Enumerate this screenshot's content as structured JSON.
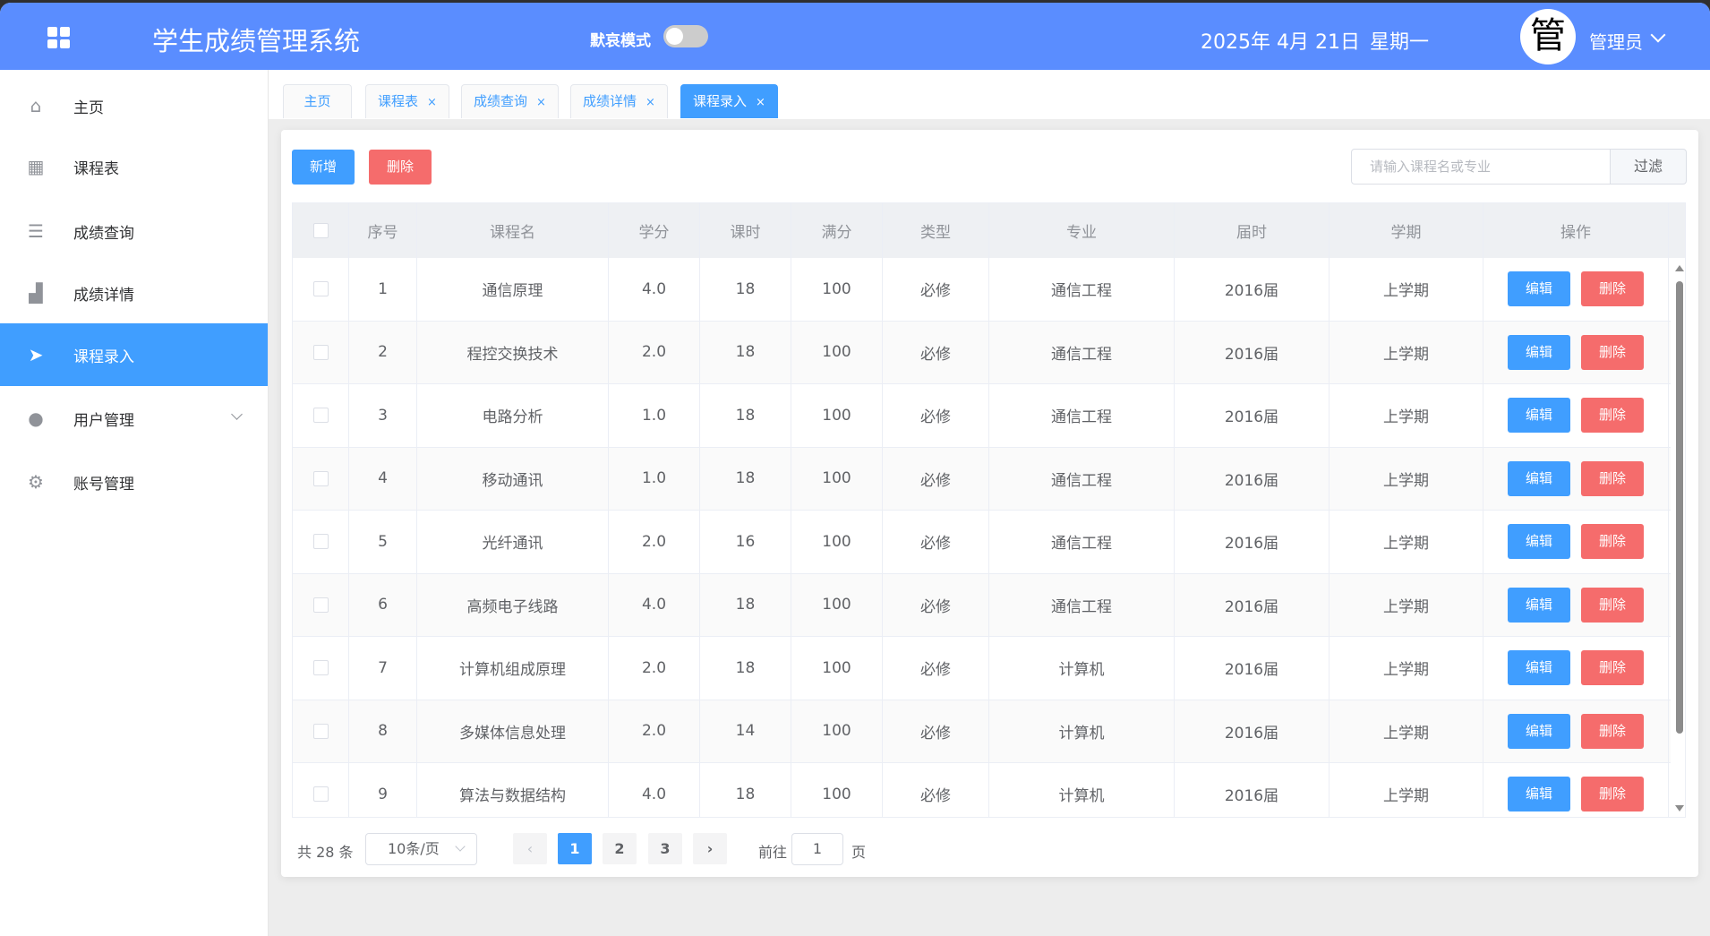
{
  "header": {
    "title": "学生成绩管理系统",
    "mourning_mode_label": "默哀模式",
    "mourning_mode_on": false,
    "date": "2025年 4月 21日",
    "weekday": "星期一",
    "avatar_text": "管",
    "user": "管理员",
    "brand_color": "#5a8dff"
  },
  "sidebar": {
    "items": [
      {
        "label": "主页",
        "icon": "home-icon"
      },
      {
        "label": "课程表",
        "icon": "grid-icon"
      },
      {
        "label": "成绩查询",
        "icon": "list-icon"
      },
      {
        "label": "成绩详情",
        "icon": "bar-chart-icon"
      },
      {
        "label": "课程录入",
        "icon": "paper-plane-icon",
        "active": true
      },
      {
        "label": "用户管理",
        "icon": "user-icon",
        "expandable": true
      },
      {
        "label": "账号管理",
        "icon": "gear-icon"
      }
    ]
  },
  "tabs": [
    {
      "label": "主页"
    },
    {
      "label": "课程表",
      "close": "×"
    },
    {
      "label": "成绩查询",
      "close": "×"
    },
    {
      "label": "成绩详情",
      "close": "×"
    },
    {
      "label": "课程录入",
      "close": "×",
      "active": true
    }
  ],
  "toolbar": {
    "add": "新增",
    "delete": "删除",
    "search_placeholder": "请输入课程名或专业",
    "search_value": "",
    "filter": "过滤"
  },
  "table": {
    "headers": [
      "序号",
      "课程名",
      "学分",
      "课时",
      "满分",
      "类型",
      "专业",
      "届时",
      "学期",
      "操作"
    ],
    "edit_label": "编辑",
    "delete_label": "删除",
    "rows": [
      [
        "1",
        "通信原理",
        "4.0",
        "18",
        "100",
        "必修",
        "通信工程",
        "2016届",
        "上学期"
      ],
      [
        "2",
        "程控交换技术",
        "2.0",
        "18",
        "100",
        "必修",
        "通信工程",
        "2016届",
        "上学期"
      ],
      [
        "3",
        "电路分析",
        "1.0",
        "18",
        "100",
        "必修",
        "通信工程",
        "2016届",
        "上学期"
      ],
      [
        "4",
        "移动通讯",
        "1.0",
        "18",
        "100",
        "必修",
        "通信工程",
        "2016届",
        "上学期"
      ],
      [
        "5",
        "光纤通讯",
        "2.0",
        "16",
        "100",
        "必修",
        "通信工程",
        "2016届",
        "上学期"
      ],
      [
        "6",
        "高频电子线路",
        "4.0",
        "18",
        "100",
        "必修",
        "通信工程",
        "2016届",
        "上学期"
      ],
      [
        "7",
        "计算机组成原理",
        "2.0",
        "18",
        "100",
        "必修",
        "计算机",
        "2016届",
        "上学期"
      ],
      [
        "8",
        "多媒体信息处理",
        "2.0",
        "14",
        "100",
        "必修",
        "计算机",
        "2016届",
        "上学期"
      ],
      [
        "9",
        "算法与数据结构",
        "4.0",
        "18",
        "100",
        "必修",
        "计算机",
        "2016届",
        "上学期"
      ]
    ]
  },
  "pagination": {
    "total": "共 28 条",
    "page_size": "10条/页",
    "pages": [
      "1",
      "2",
      "3"
    ],
    "current": "1",
    "goto_label": "前往",
    "goto_value": "1",
    "page_suffix": "页"
  }
}
